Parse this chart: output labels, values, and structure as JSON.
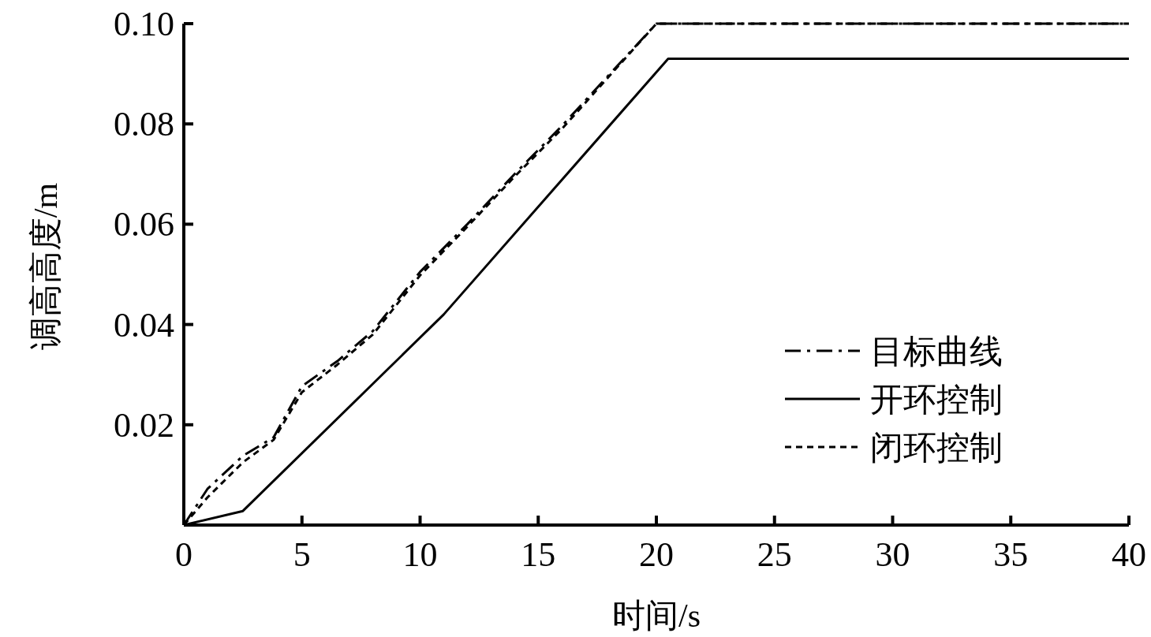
{
  "chart_data": {
    "type": "line",
    "xlabel": "时间/s",
    "ylabel": "调高高度/m",
    "xlim": [
      0,
      40
    ],
    "xticks": [
      0,
      5,
      10,
      15,
      20,
      25,
      30,
      35,
      40
    ],
    "ylim": [
      0,
      0.1
    ],
    "yticks": [
      {
        "value": 0,
        "label": null
      },
      0.02,
      0.04,
      0.06,
      0.08,
      {
        "value": 0.1,
        "label": "0.10"
      }
    ],
    "grid": false,
    "legend": "bottom right",
    "marker": "none",
    "series": [
      {
        "name": "目标曲线",
        "color": "#000000",
        "line_style": "dashdot",
        "x": [
          0,
          1,
          2.5,
          3.8,
          5,
          6.5,
          8,
          10,
          12,
          14,
          16,
          18,
          20,
          40
        ],
        "values": [
          0,
          0.0072,
          0.0138,
          0.0175,
          0.0277,
          0.0327,
          0.0387,
          0.0505,
          0.06,
          0.07,
          0.0796,
          0.0898,
          0.1,
          0.1
        ]
      },
      {
        "name": "开环控制",
        "color": "#000000",
        "line_style": "solid",
        "x": [
          0,
          2.5,
          11,
          20.5,
          40
        ],
        "values": [
          0,
          0.0028,
          0.042,
          0.093,
          0.093
        ]
      },
      {
        "name": "闭环控制",
        "color": "#000000",
        "line_style": "dotted",
        "x": [
          0,
          1,
          2.5,
          3.8,
          5,
          6.5,
          8,
          10,
          12,
          14,
          16,
          18,
          20,
          40
        ],
        "values": [
          0,
          0.0055,
          0.0125,
          0.017,
          0.0265,
          0.032,
          0.038,
          0.0498,
          0.0595,
          0.0695,
          0.079,
          0.0895,
          0.1,
          0.1
        ]
      }
    ]
  }
}
